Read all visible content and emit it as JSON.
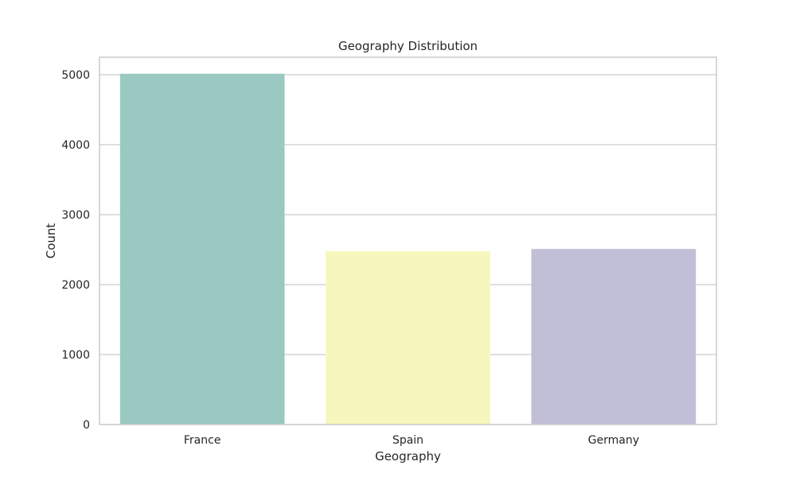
{
  "chart_data": {
    "type": "bar",
    "title": "Geography Distribution",
    "xlabel": "Geography",
    "ylabel": "Count",
    "categories": [
      "France",
      "Spain",
      "Germany"
    ],
    "values": [
      5014,
      2477,
      2509
    ],
    "colors": [
      "#99c9c0",
      "#f7f7bd",
      "#c1bed7"
    ],
    "ylim": [
      0,
      5250
    ],
    "yticks": [
      0,
      1000,
      2000,
      3000,
      4000,
      5000
    ],
    "grid": true,
    "legend": "none"
  }
}
